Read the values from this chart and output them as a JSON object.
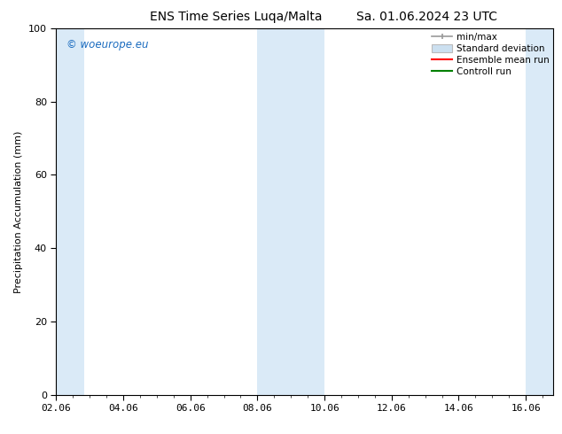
{
  "title_left": "ENS Time Series Luqa/Malta",
  "title_right": "Sa. 01.06.2024 23 UTC",
  "ylabel": "Precipitation Accumulation (mm)",
  "xlim_start": 0.0,
  "xlim_end": 14.83,
  "ylim": [
    0,
    100
  ],
  "yticks": [
    0,
    20,
    40,
    60,
    80,
    100
  ],
  "xtick_labels": [
    "02.06",
    "04.06",
    "06.06",
    "08.06",
    "10.06",
    "12.06",
    "14.06",
    "16.06"
  ],
  "xtick_positions": [
    0,
    2,
    4,
    6,
    8,
    10,
    12,
    14
  ],
  "watermark": "© woeurope.eu",
  "background_color": "#ffffff",
  "plot_bg_color": "#ffffff",
  "shaded_bands": [
    {
      "x_start": 0.0,
      "x_end": 0.83,
      "color": "#daeaf7"
    },
    {
      "x_start": 6.0,
      "x_end": 8.0,
      "color": "#daeaf7"
    },
    {
      "x_start": 14.0,
      "x_end": 14.83,
      "color": "#daeaf7"
    }
  ],
  "legend_entries": [
    {
      "label": "min/max",
      "color": "#aaaaaa",
      "type": "errorbar"
    },
    {
      "label": "Standard deviation",
      "color": "#cce0f0",
      "type": "bar"
    },
    {
      "label": "Ensemble mean run",
      "color": "#ff0000",
      "type": "line"
    },
    {
      "label": "Controll run",
      "color": "#008000",
      "type": "line"
    }
  ],
  "title_fontsize": 10,
  "axis_label_fontsize": 8,
  "tick_fontsize": 8,
  "legend_fontsize": 7.5,
  "watermark_color": "#1a6bbf",
  "border_color": "#000000"
}
